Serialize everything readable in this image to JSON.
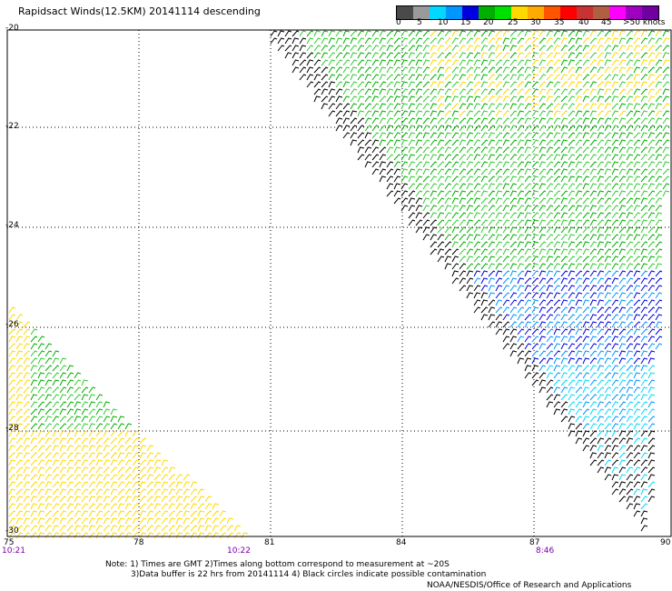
{
  "title": "Rapidsact Winds(12.5KM) 20141114 descending",
  "legend": {
    "colors": [
      "#4a4a4a",
      "#9a9a9a",
      "#00d8ff",
      "#0096ff",
      "#0000e0",
      "#00b000",
      "#00e000",
      "#ffd800",
      "#ffaa00",
      "#ff5500",
      "#ff0000",
      "#c83232",
      "#b06040",
      "#ff00ff",
      "#a000c0",
      "#7000a0"
    ],
    "labels": [
      "0",
      "5",
      "10",
      "15",
      "20",
      "25",
      "30",
      "35",
      "40",
      "45",
      ">50 knots"
    ]
  },
  "axes": {
    "lat_labels": [
      "-20",
      "-22",
      "-24",
      "-26",
      "-28",
      "-30"
    ],
    "lon_labels": [
      "75",
      "78",
      "81",
      "84",
      "87",
      "90"
    ],
    "time_labels": [
      "10:21",
      "10:22",
      "8:46"
    ]
  },
  "notes": {
    "line1": "Note: 1) Times are GMT 2)Times along bottom correspond to measurement at ~20S",
    "line2": "3)Data buffer is 22 hrs from 20141114 4) Black circles indicate possible contamination"
  },
  "credit": "NOAA/NESDIS/Office of Research and Applications"
}
